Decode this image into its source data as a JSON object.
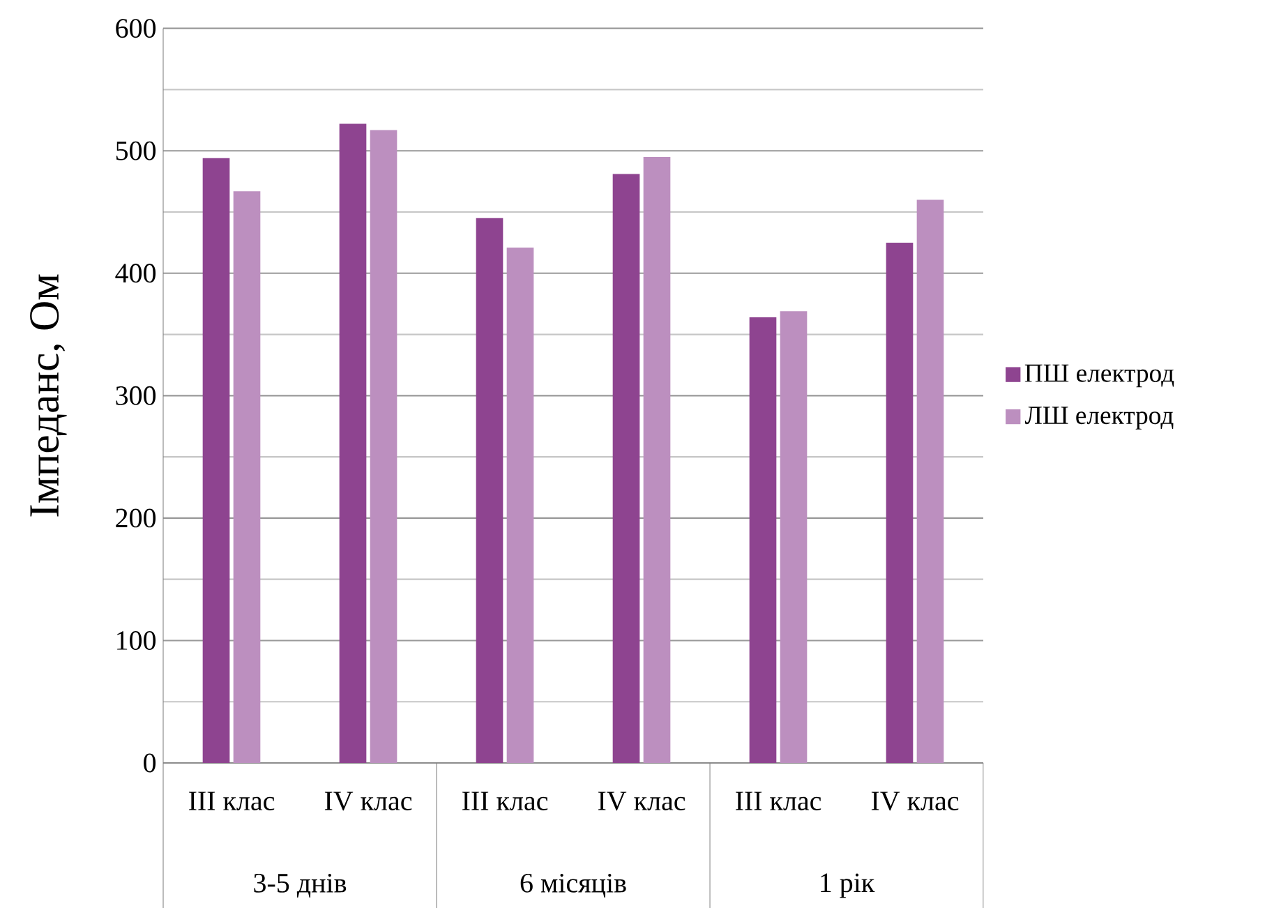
{
  "chart_data": {
    "type": "bar",
    "ylabel": "Імпеданс, Ом",
    "categories": [
      "III  клас",
      "IV  клас",
      "III  клас",
      "IV  клас",
      "III  клас",
      "IV  клас"
    ],
    "annotations": [
      "3-5 днів",
      "6 місяців",
      "1 рік"
    ],
    "series": [
      {
        "name": "ПШ електрод",
        "color": "#8e4490",
        "values": [
          494,
          522,
          445,
          481,
          364,
          425
        ]
      },
      {
        "name": "ЛШ електрод",
        "color": "#bc8fbf",
        "values": [
          467,
          517,
          421,
          495,
          369,
          460
        ]
      }
    ],
    "ylim": [
      0,
      600
    ],
    "yticks": [
      0,
      100,
      200,
      300,
      400,
      500,
      600
    ],
    "grid": "y",
    "legend": "right"
  }
}
